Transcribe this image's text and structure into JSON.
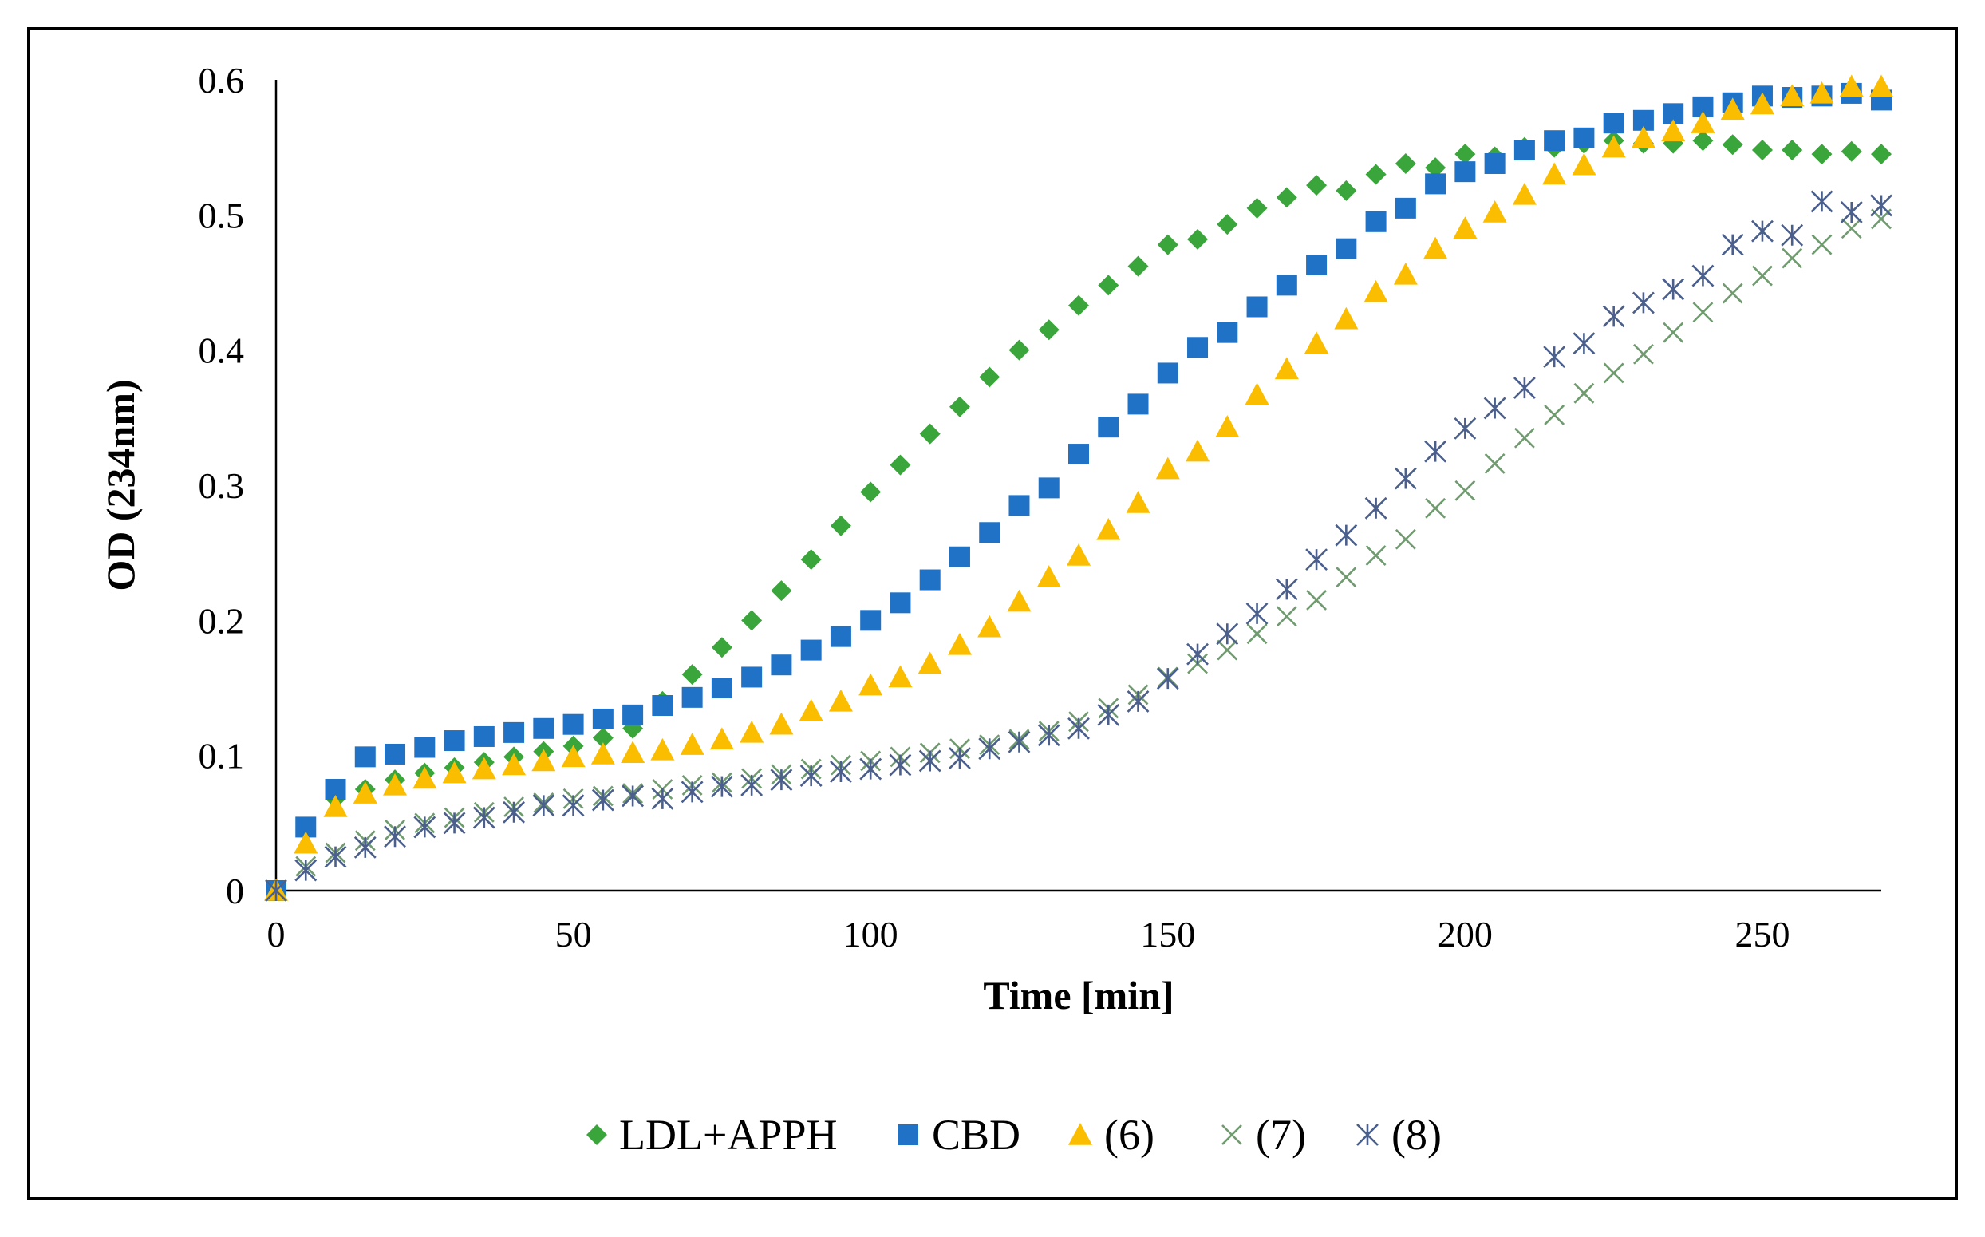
{
  "chart_data": {
    "type": "scatter",
    "title": "",
    "xlabel": "Time [min]",
    "ylabel": "OD (234nm)",
    "xlim": [
      0,
      270
    ],
    "ylim": [
      0,
      0.6
    ],
    "xticks": [
      0,
      50,
      100,
      150,
      200,
      250
    ],
    "yticks": [
      0,
      0.1,
      0.2,
      0.3,
      0.4,
      0.5,
      0.6
    ],
    "xtick_labels": [
      "0",
      "50",
      "100",
      "150",
      "200",
      "250"
    ],
    "ytick_labels": [
      "0",
      "0.1",
      "0.2",
      "0.3",
      "0.4",
      "0.5",
      "0.6"
    ],
    "grid": false,
    "legend_position": "bottom",
    "x": [
      0,
      5,
      10,
      15,
      20,
      25,
      30,
      35,
      40,
      45,
      50,
      55,
      60,
      65,
      70,
      75,
      80,
      85,
      90,
      95,
      100,
      105,
      110,
      115,
      120,
      125,
      130,
      135,
      140,
      145,
      150,
      155,
      160,
      165,
      170,
      175,
      180,
      185,
      190,
      195,
      200,
      205,
      210,
      215,
      220,
      225,
      230,
      235,
      240,
      245,
      250,
      255,
      260,
      265,
      270
    ],
    "series": [
      {
        "name": "LDL+APPH",
        "marker": "diamond",
        "color": "#3aa53a",
        "values": [
          0,
          0.045,
          0.068,
          0.075,
          0.082,
          0.087,
          0.091,
          0.095,
          0.099,
          0.103,
          0.107,
          0.113,
          0.12,
          0.14,
          0.16,
          0.18,
          0.2,
          0.222,
          0.245,
          0.27,
          0.295,
          0.315,
          0.338,
          0.358,
          0.38,
          0.4,
          0.415,
          0.433,
          0.448,
          0.462,
          0.478,
          0.482,
          0.493,
          0.505,
          0.513,
          0.522,
          0.518,
          0.53,
          0.538,
          0.535,
          0.545,
          0.543,
          0.55,
          0.55,
          0.553,
          0.555,
          0.553,
          0.553,
          0.555,
          0.552,
          0.548,
          0.548,
          0.545,
          0.547,
          0.545
        ]
      },
      {
        "name": "CBD",
        "marker": "square",
        "color": "#1f72c6",
        "values": [
          0,
          0.047,
          0.075,
          0.099,
          0.101,
          0.106,
          0.111,
          0.114,
          0.117,
          0.12,
          0.123,
          0.127,
          0.13,
          0.137,
          0.143,
          0.15,
          0.158,
          0.167,
          0.178,
          0.188,
          0.2,
          0.213,
          0.23,
          0.247,
          0.265,
          0.285,
          0.298,
          0.323,
          0.343,
          0.36,
          0.383,
          0.402,
          0.413,
          0.432,
          0.448,
          0.463,
          0.475,
          0.495,
          0.505,
          0.523,
          0.532,
          0.538,
          0.548,
          0.555,
          0.557,
          0.568,
          0.57,
          0.575,
          0.58,
          0.583,
          0.588,
          0.587,
          0.588,
          0.59,
          0.585
        ]
      },
      {
        "name": "(6)",
        "marker": "triangle",
        "color": "#fbbd00",
        "values": [
          0,
          0.035,
          0.062,
          0.072,
          0.078,
          0.083,
          0.087,
          0.09,
          0.093,
          0.096,
          0.099,
          0.101,
          0.102,
          0.104,
          0.108,
          0.112,
          0.117,
          0.123,
          0.133,
          0.14,
          0.152,
          0.158,
          0.168,
          0.182,
          0.195,
          0.214,
          0.232,
          0.248,
          0.267,
          0.287,
          0.312,
          0.325,
          0.343,
          0.367,
          0.386,
          0.405,
          0.423,
          0.443,
          0.456,
          0.475,
          0.49,
          0.502,
          0.515,
          0.53,
          0.537,
          0.55,
          0.557,
          0.562,
          0.568,
          0.578,
          0.582,
          0.588,
          0.59,
          0.595,
          0.595
        ]
      },
      {
        "name": "(7)",
        "marker": "x",
        "color": "#6f9b6f",
        "values": [
          0,
          0.018,
          0.028,
          0.037,
          0.045,
          0.05,
          0.054,
          0.058,
          0.062,
          0.065,
          0.068,
          0.07,
          0.072,
          0.075,
          0.078,
          0.08,
          0.083,
          0.086,
          0.09,
          0.093,
          0.096,
          0.099,
          0.102,
          0.105,
          0.108,
          0.112,
          0.118,
          0.125,
          0.135,
          0.145,
          0.158,
          0.168,
          0.178,
          0.19,
          0.203,
          0.215,
          0.232,
          0.248,
          0.26,
          0.283,
          0.296,
          0.316,
          0.335,
          0.352,
          0.368,
          0.383,
          0.397,
          0.413,
          0.428,
          0.442,
          0.455,
          0.468,
          0.478,
          0.49,
          0.497
        ]
      },
      {
        "name": "(8)",
        "marker": "asterisk",
        "color": "#4a5f8c",
        "values": [
          0,
          0.015,
          0.025,
          0.032,
          0.04,
          0.047,
          0.05,
          0.054,
          0.058,
          0.063,
          0.063,
          0.067,
          0.07,
          0.068,
          0.073,
          0.077,
          0.078,
          0.082,
          0.085,
          0.088,
          0.09,
          0.093,
          0.096,
          0.098,
          0.105,
          0.11,
          0.115,
          0.12,
          0.13,
          0.14,
          0.157,
          0.175,
          0.19,
          0.205,
          0.223,
          0.245,
          0.263,
          0.283,
          0.305,
          0.325,
          0.342,
          0.357,
          0.372,
          0.395,
          0.405,
          0.425,
          0.435,
          0.445,
          0.455,
          0.478,
          0.488,
          0.485,
          0.51,
          0.502,
          0.507
        ]
      }
    ]
  }
}
